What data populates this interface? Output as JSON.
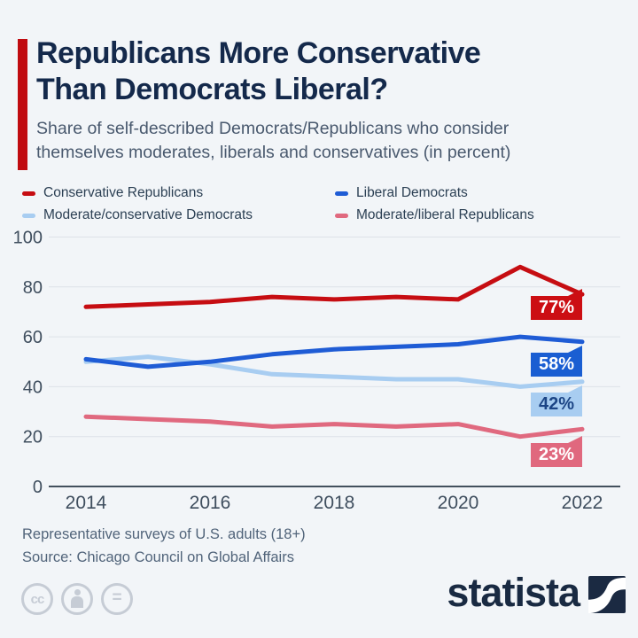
{
  "header": {
    "title_line1": "Republicans More Conservative",
    "title_line2": "Than Democrats Liberal?",
    "subtitle_line1": "Share of self-described Democrats/Republicans who consider",
    "subtitle_line2": "themselves moderates, liberals and conservatives (in percent)"
  },
  "legend": {
    "items": [
      {
        "label": "Conservative Republicans",
        "color": "#c60d12"
      },
      {
        "label": "Liberal Democrats",
        "color": "#1f5cd5"
      },
      {
        "label": "Moderate/conservative Democrats",
        "color": "#a8cdf1"
      },
      {
        "label": "Moderate/liberal Republicans",
        "color": "#e0697f"
      }
    ]
  },
  "chart_data": {
    "type": "line",
    "x": [
      2014,
      2015,
      2016,
      2017,
      2018,
      2019,
      2020,
      2021,
      2022
    ],
    "x_tick_labels": [
      "2014",
      "2016",
      "2018",
      "2020",
      "2022"
    ],
    "y_ticks": [
      0,
      20,
      40,
      60,
      80,
      100
    ],
    "ylim": [
      0,
      100
    ],
    "grid": true,
    "legend_position": "top",
    "series": [
      {
        "name": "Conservative Republicans",
        "color": "#c60d12",
        "values": [
          72,
          73,
          74,
          76,
          75,
          76,
          75,
          88,
          77
        ],
        "end_label": "77%",
        "label_bg": "#cc0e13",
        "label_text_color": "#ffffff"
      },
      {
        "name": "Liberal Democrats",
        "color": "#1f5cd5",
        "values": [
          51,
          48,
          50,
          53,
          55,
          56,
          57,
          60,
          58
        ],
        "end_label": "58%",
        "label_bg": "#1a5ed2",
        "label_text_color": "#ffffff"
      },
      {
        "name": "Moderate/conservative Democrats",
        "color": "#a8cdf1",
        "values": [
          50,
          52,
          49,
          45,
          44,
          43,
          43,
          40,
          42
        ],
        "end_label": "42%",
        "label_bg": "#a8cdf1",
        "label_text_color": "#1c4586"
      },
      {
        "name": "Moderate/liberal Republicans",
        "color": "#e0697f",
        "values": [
          28,
          27,
          26,
          24,
          25,
          24,
          25,
          20,
          23
        ],
        "end_label": "23%",
        "label_bg": "#e0687e",
        "label_text_color": "#ffffff"
      }
    ]
  },
  "footer": {
    "note": "Representative surveys of U.S. adults (18+)",
    "source": "Source: Chicago Council on Global Affairs"
  },
  "branding": {
    "logo_text": "statista"
  },
  "license_icons": [
    "cc",
    "by-person",
    "nd-equals"
  ]
}
